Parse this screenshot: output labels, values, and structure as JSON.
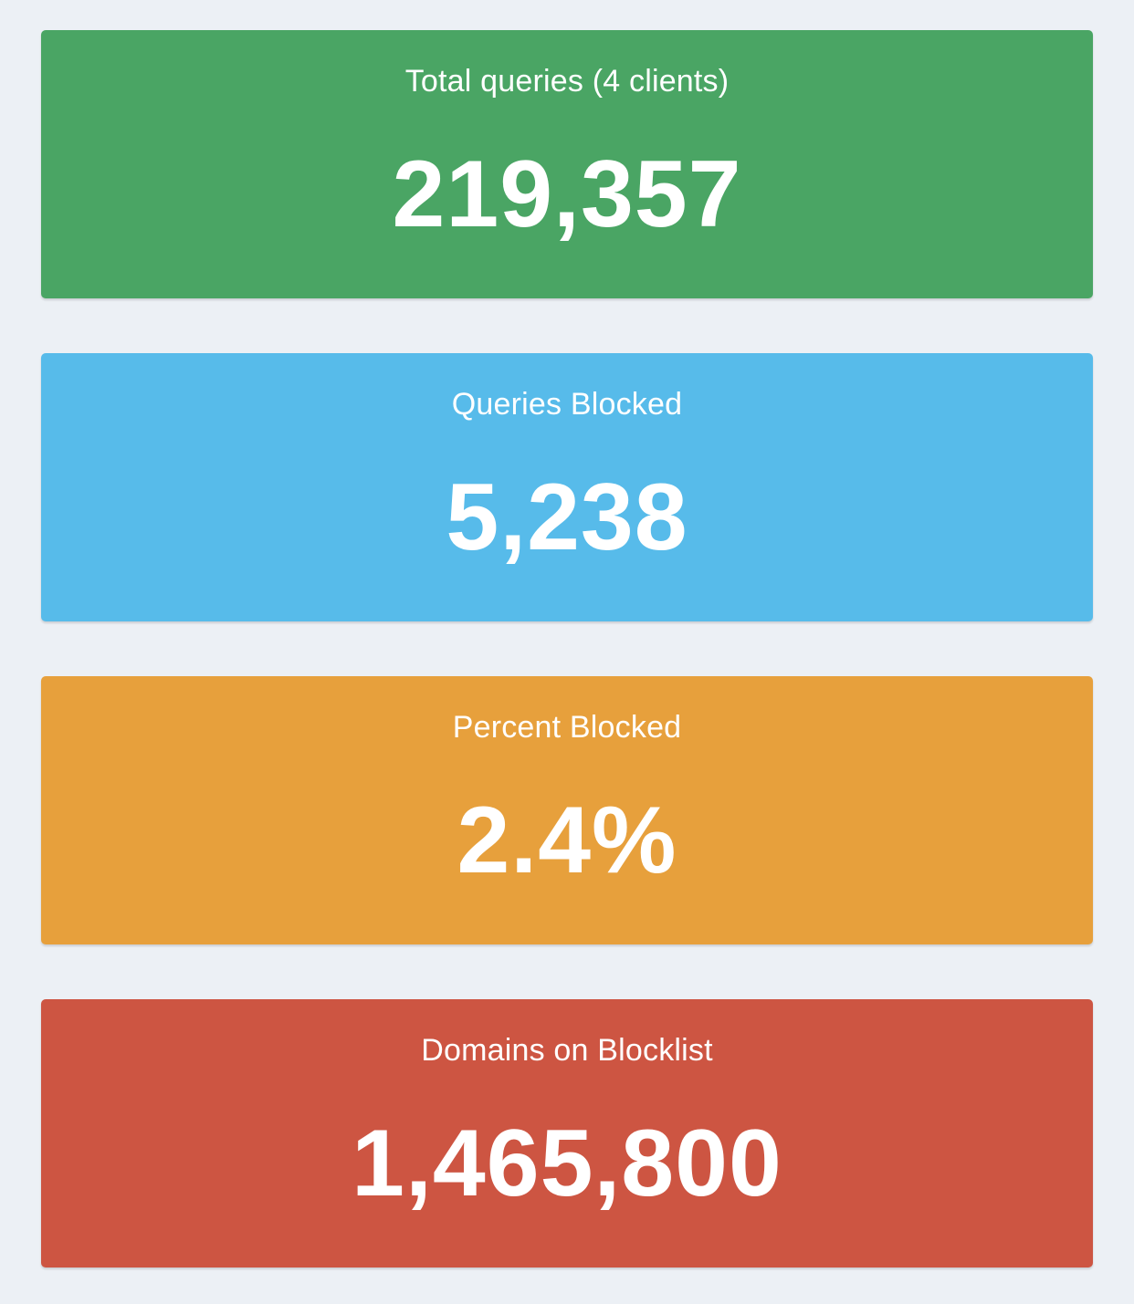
{
  "stats": [
    {
      "label": "Total queries (4 clients)",
      "value": "219,357",
      "color": "#4aa564"
    },
    {
      "label": "Queries Blocked",
      "value": "5,238",
      "color": "#57bbea"
    },
    {
      "label": "Percent Blocked",
      "value": "2.4%",
      "color": "#e7a03c"
    },
    {
      "label": "Domains on Blocklist",
      "value": "1,465,800",
      "color": "#cd5542"
    }
  ]
}
